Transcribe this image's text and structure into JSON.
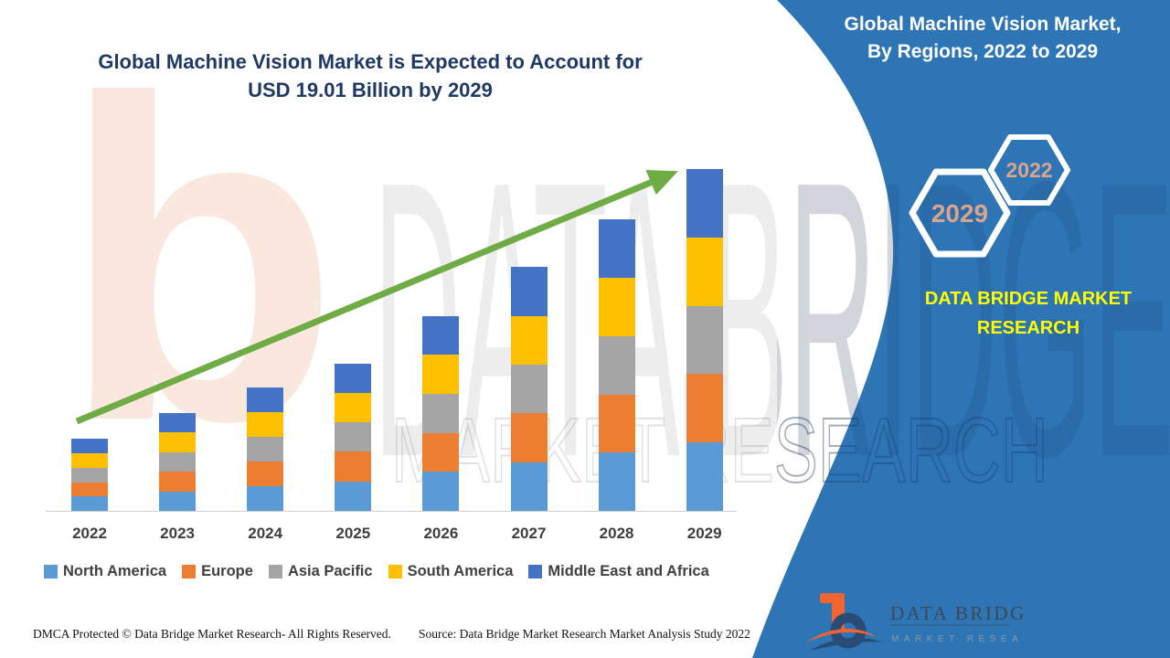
{
  "header": {
    "title_line1": "Global Machine Vision Market is Expected to Account for",
    "title_line2": "USD 19.01 Billion by 2029",
    "title_color": "#1F3864"
  },
  "panel": {
    "bg_color": "#2E75B6",
    "title_line1": "Global Machine Vision Market,",
    "title_line2": "By Regions, 2022 to 2029",
    "hex_small_label": "2022",
    "hex_large_label": "2029",
    "hex_label_color": "#D9A38C",
    "brand_line1": "DATA BRIDGE MARKET",
    "brand_line2": "RESEARCH",
    "brand_color": "#FFFF00",
    "logo_title": "DATA BRIDGE",
    "logo_subtitle": "MARKET RESEARCH"
  },
  "watermarks": {
    "letter_b": "b",
    "big_text": "DATA BRIDGE",
    "outline_text": "MARKET RESEARCH"
  },
  "footer": {
    "dmca": "DMCA Protected © Data Bridge Market Research- All Rights Reserved.",
    "source": "Source: Data Bridge Market Research Market Analysis Study 2022"
  },
  "chart_data": {
    "type": "bar",
    "stacked": true,
    "title": "Global Machine Vision Market is Expected to Account for USD 19.01 Billion by 2029",
    "unit": "USD Billion",
    "categories": [
      "2022",
      "2023",
      "2024",
      "2025",
      "2026",
      "2027",
      "2028",
      "2029"
    ],
    "totals_usd_billion": [
      4.02,
      5.44,
      6.86,
      8.18,
      10.83,
      13.57,
      16.21,
      19.01
    ],
    "series": [
      {
        "name": "North America",
        "color": "#5B9BD5",
        "values": [
          0.8,
          1.09,
          1.37,
          1.64,
          2.17,
          2.71,
          3.24,
          3.8
        ]
      },
      {
        "name": "Europe",
        "color": "#ED7D31",
        "values": [
          0.8,
          1.09,
          1.37,
          1.64,
          2.17,
          2.71,
          3.24,
          3.8
        ]
      },
      {
        "name": "Asia Pacific",
        "color": "#A5A5A5",
        "values": [
          0.8,
          1.09,
          1.37,
          1.64,
          2.17,
          2.71,
          3.24,
          3.8
        ]
      },
      {
        "name": "South America",
        "color": "#FFC000",
        "values": [
          0.8,
          1.09,
          1.37,
          1.64,
          2.17,
          2.71,
          3.24,
          3.8
        ]
      },
      {
        "name": "Middle East and Africa",
        "color": "#4472C4",
        "values": [
          0.8,
          1.09,
          1.37,
          1.64,
          2.17,
          2.71,
          3.24,
          3.8
        ]
      }
    ],
    "ylim": [
      0,
      19.5
    ],
    "xlabel": "",
    "ylabel": "",
    "grid": false,
    "y_axis_visible": false,
    "legend_position": "bottom",
    "annotations": [
      "green upward trend arrow from 2022 to 2029"
    ],
    "trend_arrow_color": "#6FAC46"
  }
}
